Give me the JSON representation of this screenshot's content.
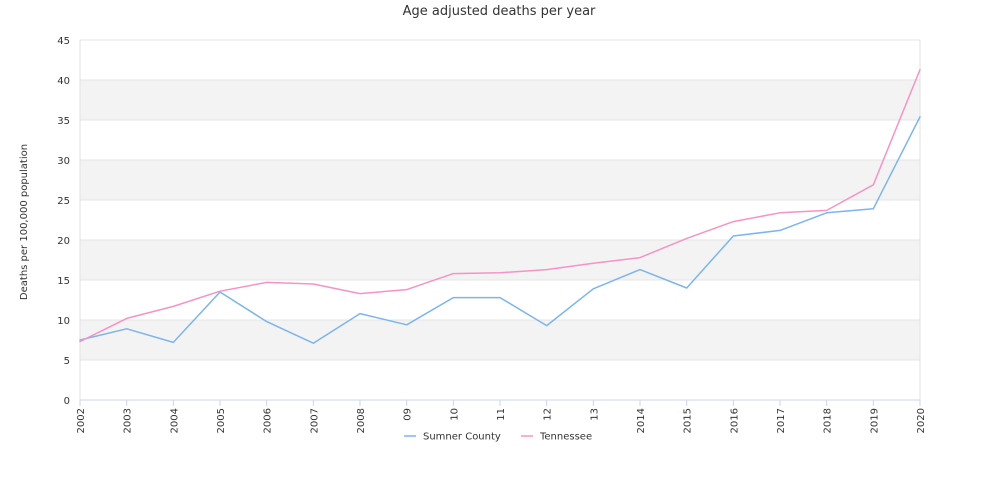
{
  "chart_data": {
    "type": "line",
    "title": "Age adjusted deaths per year",
    "xlabel": "",
    "ylabel": "Deaths per 100,000 population",
    "categories": [
      "2002",
      "2003",
      "2004",
      "2005",
      "2006",
      "2007",
      "2008",
      "09",
      "10",
      "11",
      "12",
      "13",
      "2014",
      "2015",
      "2016",
      "2017",
      "2018",
      "2019",
      "2020"
    ],
    "ylim": [
      0,
      45
    ],
    "yticks": [
      0,
      5,
      10,
      15,
      20,
      25,
      30,
      35,
      40,
      45
    ],
    "grid": "alternating horizontal bands",
    "legend_position": "bottom",
    "series": [
      {
        "name": "Sumner County",
        "color": "#7cb5ec",
        "values": [
          7.5,
          8.9,
          7.2,
          13.5,
          9.8,
          7.1,
          10.8,
          9.4,
          12.8,
          12.8,
          9.3,
          13.9,
          16.3,
          14.0,
          20.5,
          21.2,
          23.4,
          23.9,
          35.4
        ]
      },
      {
        "name": "Tennessee",
        "color": "#f494c5",
        "values": [
          7.3,
          10.2,
          11.7,
          13.6,
          14.7,
          14.5,
          13.3,
          13.8,
          15.8,
          15.9,
          16.3,
          17.1,
          17.8,
          20.2,
          22.3,
          23.4,
          23.7,
          26.9,
          41.3
        ]
      }
    ]
  }
}
